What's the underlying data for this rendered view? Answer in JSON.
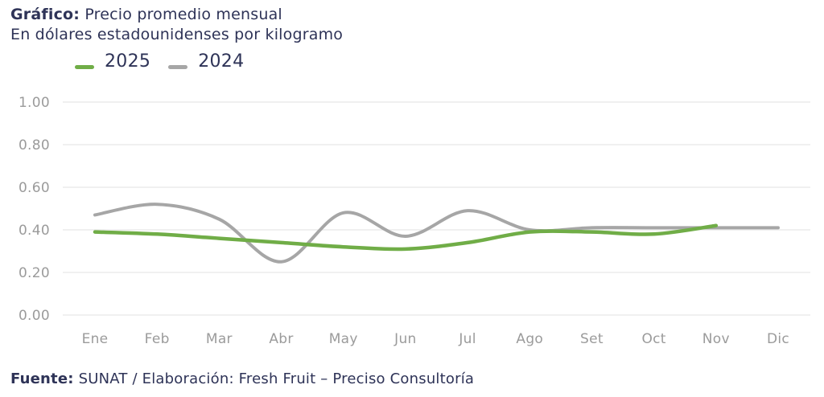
{
  "header": {
    "title_label": "Gráfico:",
    "title_text": " Precio promedio mensual",
    "subtitle": "En dólares estadounidenses por kilogramo"
  },
  "legend": {
    "items": [
      {
        "label": "2025",
        "color": "#70ad47"
      },
      {
        "label": "2024",
        "color": "#a6a6a6"
      }
    ]
  },
  "chart_data": {
    "type": "line",
    "title": "Precio promedio mensual",
    "subtitle": "En dólares estadounidenses por kilogramo",
    "xlabel": "",
    "ylabel": "Dólares estadounidenses por kilogramo",
    "categories": [
      "Ene",
      "Feb",
      "Mar",
      "Abr",
      "May",
      "Jun",
      "Jul",
      "Ago",
      "Set",
      "Oct",
      "Nov",
      "Dic"
    ],
    "series": [
      {
        "name": "2024",
        "color": "#a6a6a6",
        "values": [
          0.47,
          0.52,
          0.45,
          0.25,
          0.48,
          0.37,
          0.49,
          0.4,
          0.41,
          0.41,
          0.41,
          0.41
        ]
      },
      {
        "name": "2025",
        "color": "#70ad47",
        "values": [
          0.39,
          0.38,
          0.36,
          0.34,
          0.32,
          0.31,
          0.34,
          0.39,
          0.39,
          0.38,
          0.42
        ]
      }
    ],
    "ylim": [
      0.0,
      1.0
    ],
    "yticks": [
      "0.00",
      "0.20",
      "0.40",
      "0.60",
      "0.80",
      "1.00"
    ],
    "grid": "horizontal",
    "smooth": true,
    "legend_position": "top-left"
  },
  "footer": {
    "label": "Fuente:",
    "text": " SUNAT / Elaboración: Fresh Fruit – Preciso Consultoría"
  },
  "colors": {
    "text_navy": "#2e3357",
    "axis_gray": "#9b9b9b",
    "gridline": "#e6e6e6",
    "green_2025": "#70ad47",
    "gray_2024": "#a6a6a6",
    "background": "#ffffff"
  }
}
